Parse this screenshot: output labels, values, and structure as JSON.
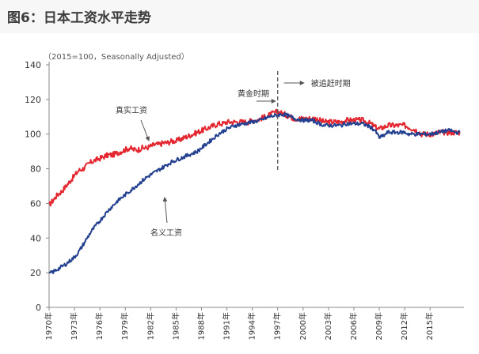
{
  "figure": {
    "title": "图6：日本工资水平走势"
  },
  "colors": {
    "background": "#ffffff",
    "real_wage": "#e3262f",
    "nominal_wage": "#233f8f",
    "axis": "#888888",
    "text": "#333333",
    "marker": "#555555"
  },
  "chart_data": {
    "type": "line",
    "subtitle": "（2015=100，Seasonally Adjusted）",
    "xlim": [
      1970,
      2019
    ],
    "ylim": [
      0,
      140
    ],
    "yticks": [
      0,
      20,
      40,
      60,
      80,
      100,
      120,
      140
    ],
    "xticks": [
      1970,
      1973,
      1976,
      1979,
      1982,
      1985,
      1988,
      1991,
      1994,
      1997,
      2000,
      2003,
      2006,
      2009,
      2012,
      2015
    ],
    "xtick_labels": [
      "1970年",
      "1973年",
      "1976年",
      "1979年",
      "1982年",
      "1985年",
      "1988年",
      "1991年",
      "1994年",
      "1997年",
      "2000年",
      "2003年",
      "2006年",
      "2009年",
      "2012年",
      "2015年"
    ],
    "grid": false,
    "series": [
      {
        "name": "真实工资",
        "color_key": "real_wage",
        "points": [
          [
            1970,
            59
          ],
          [
            1970.5,
            62
          ],
          [
            1971,
            65
          ],
          [
            1971.5,
            67
          ],
          [
            1972,
            70
          ],
          [
            1972.5,
            73
          ],
          [
            1973,
            76
          ],
          [
            1973.5,
            79
          ],
          [
            1974,
            80
          ],
          [
            1974.5,
            82
          ],
          [
            1975,
            84
          ],
          [
            1975.5,
            85
          ],
          [
            1976,
            86
          ],
          [
            1976.5,
            87
          ],
          [
            1977,
            88
          ],
          [
            1977.5,
            88
          ],
          [
            1978,
            89
          ],
          [
            1978.5,
            90
          ],
          [
            1979,
            91
          ],
          [
            1979.5,
            92
          ],
          [
            1980,
            91
          ],
          [
            1980.5,
            91
          ],
          [
            1981,
            92
          ],
          [
            1981.5,
            92
          ],
          [
            1982,
            93
          ],
          [
            1982.5,
            94
          ],
          [
            1983,
            94
          ],
          [
            1983.5,
            95
          ],
          [
            1984,
            95
          ],
          [
            1984.5,
            96
          ],
          [
            1985,
            96
          ],
          [
            1985.5,
            97
          ],
          [
            1986,
            98
          ],
          [
            1986.5,
            99
          ],
          [
            1987,
            100
          ],
          [
            1987.5,
            101
          ],
          [
            1988,
            102
          ],
          [
            1988.5,
            103
          ],
          [
            1989,
            104
          ],
          [
            1989.5,
            105
          ],
          [
            1990,
            106
          ],
          [
            1990.5,
            106
          ],
          [
            1991,
            107
          ],
          [
            1991.5,
            107
          ],
          [
            1992,
            107
          ],
          [
            1992.5,
            107
          ],
          [
            1993,
            107
          ],
          [
            1993.5,
            107
          ],
          [
            1994,
            108
          ],
          [
            1994.5,
            108
          ],
          [
            1995,
            109
          ],
          [
            1995.5,
            110
          ],
          [
            1996,
            111
          ],
          [
            1996.5,
            112
          ],
          [
            1997,
            113
          ],
          [
            1997.5,
            112
          ],
          [
            1998,
            111
          ],
          [
            1998.5,
            110
          ],
          [
            1999,
            109
          ],
          [
            1999.5,
            109
          ],
          [
            2000,
            109
          ],
          [
            2000.5,
            109
          ],
          [
            2001,
            109
          ],
          [
            2001.5,
            109
          ],
          [
            2002,
            108
          ],
          [
            2002.5,
            107
          ],
          [
            2003,
            107
          ],
          [
            2003.5,
            107
          ],
          [
            2004,
            107
          ],
          [
            2004.5,
            107
          ],
          [
            2005,
            108
          ],
          [
            2005.5,
            108
          ],
          [
            2006,
            108
          ],
          [
            2006.5,
            108
          ],
          [
            2007,
            108
          ],
          [
            2007.5,
            107
          ],
          [
            2008,
            106
          ],
          [
            2008.5,
            104
          ],
          [
            2009,
            103
          ],
          [
            2009.5,
            104
          ],
          [
            2010,
            105
          ],
          [
            2010.5,
            105
          ],
          [
            2011,
            105
          ],
          [
            2011.5,
            105
          ],
          [
            2012,
            105
          ],
          [
            2012.5,
            104
          ],
          [
            2013,
            103
          ],
          [
            2013.5,
            102
          ],
          [
            2014,
            100
          ],
          [
            2014.5,
            100
          ],
          [
            2015,
            100
          ],
          [
            2015.5,
            100
          ],
          [
            2016,
            101
          ],
          [
            2016.5,
            101
          ],
          [
            2017,
            101
          ],
          [
            2017.5,
            101
          ],
          [
            2018,
            101
          ],
          [
            2018.5,
            101
          ]
        ]
      },
      {
        "name": "名义工资",
        "color_key": "nominal_wage",
        "points": [
          [
            1970,
            19.5
          ],
          [
            1970.5,
            20.5
          ],
          [
            1971,
            22
          ],
          [
            1971.5,
            23.5
          ],
          [
            1972,
            25
          ],
          [
            1972.5,
            27
          ],
          [
            1973,
            29
          ],
          [
            1973.5,
            32
          ],
          [
            1974,
            36
          ],
          [
            1974.5,
            40
          ],
          [
            1975,
            44
          ],
          [
            1975.5,
            47
          ],
          [
            1976,
            50
          ],
          [
            1976.5,
            53
          ],
          [
            1977,
            56
          ],
          [
            1977.5,
            58.5
          ],
          [
            1978,
            61
          ],
          [
            1978.5,
            63
          ],
          [
            1979,
            65
          ],
          [
            1979.5,
            67
          ],
          [
            1980,
            69
          ],
          [
            1980.5,
            71
          ],
          [
            1981,
            73
          ],
          [
            1981.5,
            75
          ],
          [
            1982,
            76.5
          ],
          [
            1982.5,
            78
          ],
          [
            1983,
            79.5
          ],
          [
            1983.5,
            81
          ],
          [
            1984,
            82.5
          ],
          [
            1984.5,
            84
          ],
          [
            1985,
            85
          ],
          [
            1985.5,
            86
          ],
          [
            1986,
            87
          ],
          [
            1986.5,
            88
          ],
          [
            1987,
            89
          ],
          [
            1987.5,
            90
          ],
          [
            1988,
            92
          ],
          [
            1988.5,
            94
          ],
          [
            1989,
            96
          ],
          [
            1989.5,
            98
          ],
          [
            1990,
            100
          ],
          [
            1990.5,
            101.5
          ],
          [
            1991,
            103
          ],
          [
            1991.5,
            104
          ],
          [
            1992,
            105
          ],
          [
            1992.5,
            105.5
          ],
          [
            1993,
            106
          ],
          [
            1993.5,
            106.5
          ],
          [
            1994,
            107
          ],
          [
            1994.5,
            107.5
          ],
          [
            1995,
            108
          ],
          [
            1995.5,
            109
          ],
          [
            1996,
            110
          ],
          [
            1996.5,
            110.5
          ],
          [
            1997,
            111
          ],
          [
            1997.5,
            111.5
          ],
          [
            1998,
            111
          ],
          [
            1998.5,
            110
          ],
          [
            1999,
            109
          ],
          [
            1999.5,
            108.5
          ],
          [
            2000,
            108
          ],
          [
            2000.5,
            108
          ],
          [
            2001,
            108
          ],
          [
            2001.5,
            107
          ],
          [
            2002,
            106
          ],
          [
            2002.5,
            105
          ],
          [
            2003,
            105
          ],
          [
            2003.5,
            105
          ],
          [
            2004,
            105
          ],
          [
            2004.5,
            105
          ],
          [
            2005,
            106
          ],
          [
            2005.5,
            106
          ],
          [
            2006,
            106
          ],
          [
            2006.5,
            106
          ],
          [
            2007,
            106
          ],
          [
            2007.5,
            105
          ],
          [
            2008,
            104
          ],
          [
            2008.5,
            102
          ],
          [
            2009,
            98
          ],
          [
            2009.5,
            99
          ],
          [
            2010,
            101
          ],
          [
            2010.5,
            101
          ],
          [
            2011,
            101
          ],
          [
            2011.5,
            101
          ],
          [
            2012,
            101
          ],
          [
            2012.5,
            100
          ],
          [
            2013,
            100
          ],
          [
            2013.5,
            100
          ],
          [
            2014,
            100
          ],
          [
            2014.5,
            100
          ],
          [
            2015,
            100
          ],
          [
            2015.5,
            100.5
          ],
          [
            2016,
            101
          ],
          [
            2016.5,
            101.5
          ],
          [
            2017,
            102
          ],
          [
            2017.5,
            102
          ],
          [
            2018,
            101
          ],
          [
            2018.5,
            101
          ]
        ]
      }
    ],
    "annotations": {
      "real_wage_label": "真实工资",
      "nominal_wage_label": "名义工资",
      "golden_period": "黄金时期",
      "catch_up_period": "被追赶时期",
      "divider_year": 1997
    }
  }
}
